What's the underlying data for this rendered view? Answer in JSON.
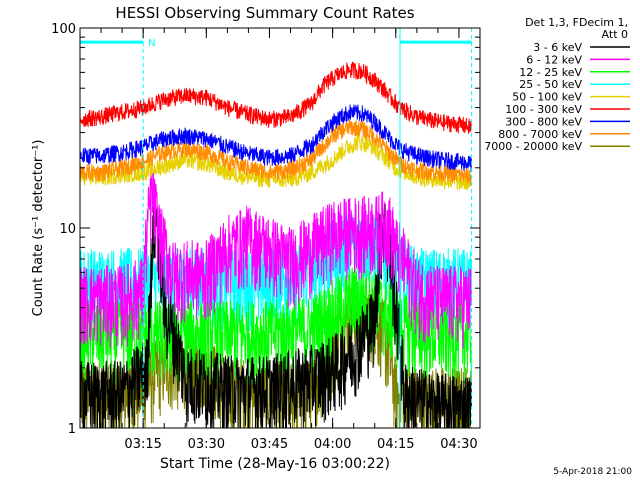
{
  "chart_data": {
    "type": "line",
    "title": "HESSI Observing Summary Count Rates",
    "xlabel": "Start Time (28-May-16 03:00:22)",
    "ylabel": "Count Rate (s⁻¹ detector⁻¹)",
    "y_scale": "log",
    "ylim": [
      1,
      100
    ],
    "y_ticks": [
      {
        "value": 1,
        "label": "1"
      },
      {
        "value": 10,
        "label": "10"
      },
      {
        "value": 100,
        "label": "100"
      }
    ],
    "xlim_minutes": [
      0,
      95
    ],
    "x_ticks": [
      {
        "minute": 15,
        "label": "03:15"
      },
      {
        "minute": 30,
        "label": "03:30"
      },
      {
        "minute": 45,
        "label": "03:45"
      },
      {
        "minute": 60,
        "label": "04:00"
      },
      {
        "minute": 75,
        "label": "04:15"
      },
      {
        "minute": 90,
        "label": "04:30"
      }
    ],
    "legend_header": [
      "Det 1,3, FDecim 1,",
      "Att 0"
    ],
    "legend_position": "right",
    "series": [
      {
        "name": "3 - 6 keV",
        "color": "#000000",
        "x": [
          0,
          10,
          16,
          17,
          18,
          20,
          25,
          35,
          45,
          55,
          60,
          65,
          70,
          72,
          75,
          77,
          80,
          85,
          90,
          93
        ],
        "y": [
          1.5,
          1.5,
          2,
          7,
          12,
          4,
          1.8,
          1.6,
          1.6,
          1.8,
          2,
          2.5,
          3.5,
          11,
          4,
          1.5,
          1.4,
          1.3,
          1.3,
          1.3
        ]
      },
      {
        "name": "6 - 12 keV",
        "color": "#ff00ff",
        "x": [
          0,
          10,
          15,
          17,
          19,
          22,
          30,
          35,
          40,
          45,
          50,
          55,
          60,
          65,
          70,
          73,
          75,
          80,
          85,
          90,
          93
        ],
        "y": [
          4.5,
          4.5,
          5,
          15,
          9,
          6,
          6,
          8,
          9,
          8,
          7,
          8,
          9.5,
          10,
          10,
          11,
          8,
          5,
          4.5,
          4.5,
          4.5
        ]
      },
      {
        "name": "12 - 25 keV",
        "color": "#00ff00",
        "x": [
          0,
          15,
          30,
          45,
          55,
          60,
          65,
          70,
          75,
          80,
          85,
          90,
          93
        ],
        "y": [
          3,
          3,
          3,
          3,
          3.2,
          3.8,
          4.5,
          4.3,
          3.5,
          3,
          3,
          3,
          3
        ]
      },
      {
        "name": "25 - 50 keV",
        "color": "#00ffff",
        "x": [
          0,
          15,
          30,
          45,
          55,
          60,
          65,
          70,
          75,
          80,
          85,
          90,
          93
        ],
        "y": [
          5.5,
          5.5,
          5.5,
          5.5,
          6,
          7.5,
          9,
          8.5,
          6.5,
          5.5,
          5.5,
          5.5,
          5.5
        ]
      },
      {
        "name": "50 - 100 keV",
        "color": "#e6d000",
        "x": [
          0,
          5,
          10,
          15,
          20,
          25,
          30,
          35,
          40,
          45,
          50,
          55,
          60,
          63,
          66,
          69,
          72,
          75,
          80,
          85,
          90,
          93
        ],
        "y": [
          18,
          18,
          18.5,
          19,
          20.5,
          22,
          21,
          19,
          18,
          17.5,
          17.5,
          19,
          22,
          25,
          27,
          26,
          23,
          20,
          18,
          17.5,
          17,
          17
        ]
      },
      {
        "name": "100 - 300 keV",
        "color": "#ff0000",
        "x": [
          0,
          5,
          10,
          15,
          20,
          25,
          30,
          35,
          40,
          45,
          50,
          55,
          58,
          61,
          64,
          67,
          70,
          73,
          76,
          80,
          85,
          90,
          93
        ],
        "y": [
          35,
          36,
          38,
          40,
          44,
          46,
          45,
          40,
          37,
          35,
          36,
          42,
          52,
          58,
          62,
          61,
          55,
          47,
          40,
          36,
          34,
          33,
          32
        ]
      },
      {
        "name": "300 - 800 keV",
        "color": "#0000ff",
        "x": [
          0,
          5,
          10,
          15,
          20,
          25,
          30,
          35,
          40,
          45,
          50,
          55,
          58,
          61,
          64,
          67,
          70,
          73,
          76,
          80,
          85,
          90,
          93
        ],
        "y": [
          23,
          23,
          24,
          25.5,
          28,
          29,
          28,
          25.5,
          23.5,
          22.5,
          23,
          26,
          31,
          35,
          38,
          37.5,
          34,
          29,
          25,
          23,
          22,
          21.5,
          21
        ]
      },
      {
        "name": "800 - 7000 keV",
        "color": "#ff8c00",
        "x": [
          0,
          5,
          10,
          15,
          20,
          25,
          30,
          35,
          40,
          45,
          50,
          55,
          58,
          61,
          64,
          67,
          70,
          73,
          76,
          80,
          85,
          90,
          93
        ],
        "y": [
          19,
          19,
          20,
          21.5,
          24,
          25,
          24,
          21.5,
          20,
          19,
          19.5,
          22,
          26,
          30,
          32,
          31.5,
          28.5,
          24.5,
          21,
          19.5,
          19,
          18.5,
          18
        ]
      },
      {
        "name": "7000 - 20000 keV",
        "color": "#808000",
        "x": [
          0,
          10,
          15,
          20,
          25,
          30,
          35,
          45,
          55,
          60,
          63,
          65,
          70,
          72,
          75,
          80,
          85,
          90,
          93
        ],
        "y": [
          1.5,
          1.5,
          1.6,
          2.1,
          2.1,
          2,
          1.6,
          1.5,
          1.5,
          2.5,
          3.5,
          3.8,
          3.6,
          3,
          1.5,
          1.4,
          1.4,
          1.4,
          1.4
        ]
      }
    ],
    "annotations": [
      {
        "type": "bar",
        "x_start": 0,
        "x_end": 15,
        "y": 85,
        "color": "#00ffff",
        "label": "N"
      },
      {
        "type": "bar",
        "x_start": 76,
        "x_end": 93,
        "y": 85,
        "color": "#00ffff",
        "label": ""
      },
      {
        "type": "vline",
        "x": 15,
        "color": "#00ffff",
        "style": "dashed"
      },
      {
        "type": "vline",
        "x": 76,
        "color": "#00ffff",
        "style": "solid"
      },
      {
        "type": "vline",
        "x": 93,
        "color": "#00ffff",
        "style": "dashed"
      }
    ]
  },
  "footer_text": "5-Apr-2018 21:00"
}
